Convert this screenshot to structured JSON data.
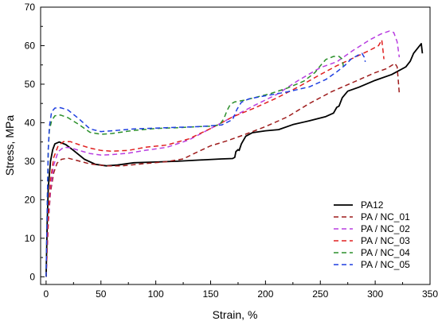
{
  "chart_data": {
    "type": "line",
    "title": "",
    "xlabel": "Strain, %",
    "ylabel": "Stress, MPa",
    "xlim": [
      -5,
      350
    ],
    "ylim": [
      -2,
      70
    ],
    "xticks": [
      0,
      50,
      100,
      150,
      200,
      250,
      300,
      350
    ],
    "yticks": [
      0,
      10,
      20,
      30,
      40,
      50,
      60,
      70
    ],
    "grid": false,
    "legend_position": "bottom-right",
    "series": [
      {
        "name": "PA12",
        "color": "#000000",
        "dash": "solid",
        "points": [
          [
            0,
            0
          ],
          [
            1,
            14
          ],
          [
            2,
            23
          ],
          [
            4,
            30
          ],
          [
            6,
            33
          ],
          [
            8,
            34.5
          ],
          [
            12,
            35
          ],
          [
            18,
            34.3
          ],
          [
            25,
            32.8
          ],
          [
            35,
            30.5
          ],
          [
            45,
            29.2
          ],
          [
            55,
            28.8
          ],
          [
            65,
            29
          ],
          [
            80,
            29.6
          ],
          [
            100,
            29.8
          ],
          [
            120,
            30
          ],
          [
            140,
            30.3
          ],
          [
            160,
            30.6
          ],
          [
            170,
            30.7
          ],
          [
            172,
            31
          ],
          [
            173,
            32.5
          ],
          [
            175,
            33
          ],
          [
            176,
            32.8
          ],
          [
            178,
            34.5
          ],
          [
            182,
            36.5
          ],
          [
            188,
            37.4
          ],
          [
            200,
            37.9
          ],
          [
            212,
            38.2
          ],
          [
            225,
            39.5
          ],
          [
            240,
            40.5
          ],
          [
            255,
            41.6
          ],
          [
            262,
            42.5
          ],
          [
            265,
            44
          ],
          [
            267,
            44.3
          ],
          [
            270,
            46.5
          ],
          [
            275,
            48.2
          ],
          [
            285,
            49.2
          ],
          [
            300,
            51
          ],
          [
            315,
            52.5
          ],
          [
            328,
            54.5
          ],
          [
            332,
            56
          ],
          [
            335,
            58
          ],
          [
            340,
            59.8
          ],
          [
            342,
            60.5
          ],
          [
            343,
            58
          ]
        ]
      },
      {
        "name": "PA / NC_01",
        "color": "#9e1b1b",
        "dash": "dashed",
        "points": [
          [
            0,
            0
          ],
          [
            2,
            14
          ],
          [
            4,
            22
          ],
          [
            7,
            27
          ],
          [
            10,
            29.5
          ],
          [
            14,
            30.5
          ],
          [
            20,
            30.8
          ],
          [
            28,
            30.2
          ],
          [
            40,
            29.3
          ],
          [
            55,
            28.8
          ],
          [
            70,
            28.8
          ],
          [
            90,
            29.4
          ],
          [
            110,
            29.9
          ],
          [
            125,
            30.6
          ],
          [
            135,
            32
          ],
          [
            150,
            34
          ],
          [
            165,
            35.3
          ],
          [
            180,
            36.8
          ],
          [
            200,
            39
          ],
          [
            220,
            41.5
          ],
          [
            240,
            45
          ],
          [
            260,
            48
          ],
          [
            280,
            50.5
          ],
          [
            300,
            53
          ],
          [
            310,
            54
          ],
          [
            318,
            55.4
          ],
          [
            320,
            54.5
          ],
          [
            321,
            51
          ],
          [
            322,
            47.6
          ]
        ]
      },
      {
        "name": "PA / NC_02",
        "color": "#b83ee0",
        "dash": "dashed",
        "points": [
          [
            0,
            0
          ],
          [
            2,
            14
          ],
          [
            4,
            23
          ],
          [
            7,
            29
          ],
          [
            11,
            32.5
          ],
          [
            16,
            33.6
          ],
          [
            22,
            33.5
          ],
          [
            30,
            32.8
          ],
          [
            40,
            32
          ],
          [
            50,
            31.6
          ],
          [
            60,
            31.7
          ],
          [
            75,
            32.1
          ],
          [
            90,
            32.8
          ],
          [
            110,
            33.6
          ],
          [
            130,
            35.5
          ],
          [
            150,
            38.5
          ],
          [
            170,
            41.5
          ],
          [
            190,
            44.5
          ],
          [
            210,
            47.3
          ],
          [
            230,
            51
          ],
          [
            250,
            54.3
          ],
          [
            265,
            55.8
          ],
          [
            280,
            58.8
          ],
          [
            295,
            61.5
          ],
          [
            305,
            63
          ],
          [
            313,
            63.8
          ],
          [
            317,
            63.4
          ],
          [
            320,
            61
          ],
          [
            322,
            57
          ]
        ]
      },
      {
        "name": "PA / NC_03",
        "color": "#e02020",
        "dash": "dashed",
        "points": [
          [
            0,
            0
          ],
          [
            2,
            15
          ],
          [
            4,
            25
          ],
          [
            7,
            31
          ],
          [
            11,
            34
          ],
          [
            16,
            35.1
          ],
          [
            22,
            35.1
          ],
          [
            30,
            34.3
          ],
          [
            40,
            33.4
          ],
          [
            50,
            32.8
          ],
          [
            60,
            32.6
          ],
          [
            75,
            32.8
          ],
          [
            90,
            33.6
          ],
          [
            110,
            34.2
          ],
          [
            130,
            35.8
          ],
          [
            150,
            38.5
          ],
          [
            170,
            41.5
          ],
          [
            190,
            43.8
          ],
          [
            210,
            46.4
          ],
          [
            230,
            49.3
          ],
          [
            250,
            52.5
          ],
          [
            265,
            54.8
          ],
          [
            280,
            56.8
          ],
          [
            295,
            58.8
          ],
          [
            303,
            60
          ],
          [
            306,
            61.5
          ],
          [
            307,
            59
          ],
          [
            308,
            56.5
          ]
        ]
      },
      {
        "name": "PA / NC_04",
        "color": "#2b8f2b",
        "dash": "dashed",
        "points": [
          [
            0,
            0
          ],
          [
            1,
            18
          ],
          [
            2,
            33
          ],
          [
            3,
            38
          ],
          [
            5,
            40.5
          ],
          [
            8,
            41.8
          ],
          [
            13,
            42
          ],
          [
            20,
            41.3
          ],
          [
            30,
            39.5
          ],
          [
            40,
            37.5
          ],
          [
            50,
            37
          ],
          [
            60,
            37.2
          ],
          [
            80,
            38
          ],
          [
            100,
            38.5
          ],
          [
            120,
            38.7
          ],
          [
            140,
            39
          ],
          [
            150,
            39.1
          ],
          [
            158,
            39.4
          ],
          [
            162,
            41
          ],
          [
            165,
            43.2
          ],
          [
            168,
            44.8
          ],
          [
            172,
            45.4
          ],
          [
            180,
            45.8
          ],
          [
            190,
            46.5
          ],
          [
            205,
            47.6
          ],
          [
            220,
            49
          ],
          [
            235,
            50.8
          ],
          [
            245,
            53
          ],
          [
            250,
            54.8
          ],
          [
            255,
            56.4
          ],
          [
            262,
            57.2
          ],
          [
            267,
            57.2
          ],
          [
            270,
            56.5
          ],
          [
            271,
            54.6
          ]
        ]
      },
      {
        "name": "PA / NC_05",
        "color": "#1f3fe0",
        "dash": "dashed",
        "points": [
          [
            0,
            0
          ],
          [
            1,
            18
          ],
          [
            2,
            33
          ],
          [
            3,
            39
          ],
          [
            5,
            42.8
          ],
          [
            8,
            43.8
          ],
          [
            13,
            43.9
          ],
          [
            20,
            43.3
          ],
          [
            30,
            41
          ],
          [
            40,
            38.4
          ],
          [
            50,
            37.7
          ],
          [
            60,
            37.9
          ],
          [
            80,
            38.4
          ],
          [
            100,
            38.6
          ],
          [
            120,
            38.8
          ],
          [
            140,
            39
          ],
          [
            160,
            39.4
          ],
          [
            170,
            40.8
          ],
          [
            174,
            43.5
          ],
          [
            178,
            45.3
          ],
          [
            185,
            46.2
          ],
          [
            200,
            47
          ],
          [
            220,
            48
          ],
          [
            240,
            49.3
          ],
          [
            255,
            51.2
          ],
          [
            265,
            53.2
          ],
          [
            272,
            54.8
          ],
          [
            278,
            56.5
          ],
          [
            284,
            57.5
          ],
          [
            288,
            58
          ],
          [
            290,
            57
          ],
          [
            291,
            55.8
          ]
        ]
      }
    ]
  }
}
